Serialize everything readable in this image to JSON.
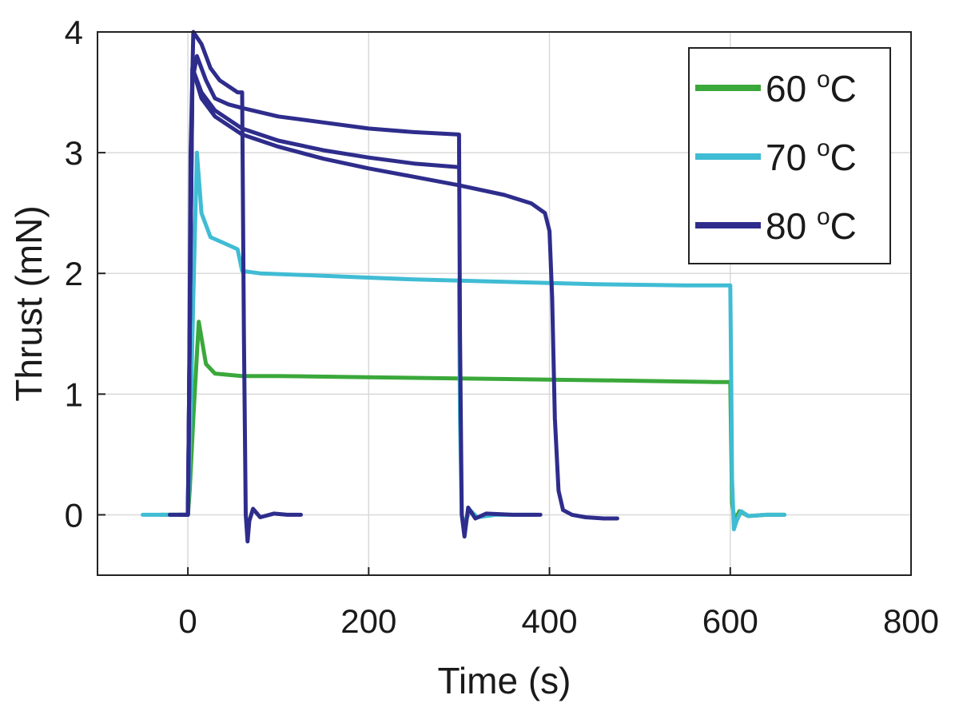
{
  "chart_data": {
    "type": "line",
    "title": "",
    "xlabel": "Time (s)",
    "ylabel": "Thrust (mN)",
    "xlim": [
      -100,
      800
    ],
    "ylim": [
      -0.5,
      4
    ],
    "xticks": [
      0,
      200,
      400,
      600,
      800
    ],
    "yticks": [
      0,
      1,
      2,
      3,
      4
    ],
    "grid": true,
    "legend_position": "top-right",
    "series": [
      {
        "name": "60 °C",
        "legend_main": "60 ",
        "legend_sup": "o",
        "legend_unit": "C",
        "color": "#3aa83a",
        "x": [
          -30,
          -5,
          0,
          2,
          6,
          12,
          20,
          30,
          45,
          60,
          100,
          200,
          300,
          400,
          500,
          580,
          600,
          601,
          602,
          605,
          610,
          620,
          640,
          660
        ],
        "y": [
          0,
          0,
          0,
          0.2,
          0.8,
          1.6,
          1.25,
          1.17,
          1.16,
          1.15,
          1.15,
          1.14,
          1.13,
          1.12,
          1.11,
          1.1,
          1.1,
          0.6,
          0.1,
          -0.05,
          0.03,
          -0.01,
          0.0,
          0.0
        ]
      },
      {
        "name": "70 °C",
        "legend_main": "70 ",
        "legend_sup": "o",
        "legend_unit": "C",
        "color": "#40bcd4",
        "x": [
          -50,
          -20,
          -5,
          0,
          2,
          6,
          10,
          15,
          25,
          40,
          55,
          60,
          80,
          150,
          250,
          350,
          450,
          550,
          600,
          601,
          602,
          604,
          607,
          612,
          620,
          640,
          660
        ],
        "y": [
          0,
          0,
          0,
          0,
          0.5,
          1.8,
          3.0,
          2.5,
          2.3,
          2.25,
          2.2,
          2.02,
          2.0,
          1.98,
          1.95,
          1.93,
          1.91,
          1.9,
          1.9,
          1.2,
          0.3,
          -0.12,
          -0.05,
          0.03,
          -0.01,
          0.0,
          0.0
        ],
        "x2": [
          300,
          301,
          303,
          306,
          312,
          320,
          340,
          360,
          385
        ],
        "y2": [
          1.95,
          0.8,
          0.0,
          -0.08,
          0.04,
          -0.02,
          0.0,
          0.0,
          0.0
        ]
      },
      {
        "name": "80 °C",
        "legend_main": "80 ",
        "legend_sup": "o",
        "legend_unit": "C",
        "color": "#2e2d8c",
        "runs": [
          {
            "x": [
              -20,
              -5,
              0,
              1,
              3,
              6,
              15,
              25,
              35,
              45,
              55,
              60,
              62,
              64,
              66,
              68,
              72,
              80,
              95,
              110,
              125
            ],
            "y": [
              0,
              0,
              0,
              0.5,
              3.0,
              4.0,
              3.9,
              3.7,
              3.6,
              3.55,
              3.5,
              3.5,
              1.5,
              0.0,
              -0.22,
              -0.05,
              0.05,
              -0.02,
              0.01,
              0.0,
              0.0
            ]
          },
          {
            "x": [
              -10,
              0,
              2,
              5,
              10,
              20,
              30,
              45,
              60,
              100,
              150,
              200,
              250,
              300,
              301,
              303,
              306,
              310,
              318,
              330,
              360,
              390
            ],
            "y": [
              0,
              0,
              1.5,
              3.6,
              3.8,
              3.6,
              3.45,
              3.4,
              3.37,
              3.3,
              3.25,
              3.2,
              3.17,
              3.15,
              1.5,
              0.0,
              -0.18,
              0.06,
              -0.03,
              0.01,
              0.0,
              0.0
            ]
          },
          {
            "x": [
              0,
              5,
              15,
              30,
              60,
              100,
              150,
              200,
              250,
              300
            ],
            "y": [
              0,
              3.7,
              3.5,
              3.35,
              3.2,
              3.1,
              3.02,
              2.96,
              2.91,
              2.88
            ]
          },
          {
            "x": [
              0,
              5,
              15,
              30,
              60,
              100,
              150,
              200,
              250,
              300,
              350,
              380,
              395,
              400,
              403,
              406,
              410,
              415,
              425,
              440,
              460,
              475
            ],
            "y": [
              0,
              3.7,
              3.45,
              3.3,
              3.15,
              3.05,
              2.95,
              2.87,
              2.8,
              2.73,
              2.65,
              2.58,
              2.5,
              2.35,
              1.8,
              0.8,
              0.2,
              0.04,
              0.0,
              -0.02,
              -0.03,
              -0.03
            ]
          }
        ]
      }
    ]
  }
}
